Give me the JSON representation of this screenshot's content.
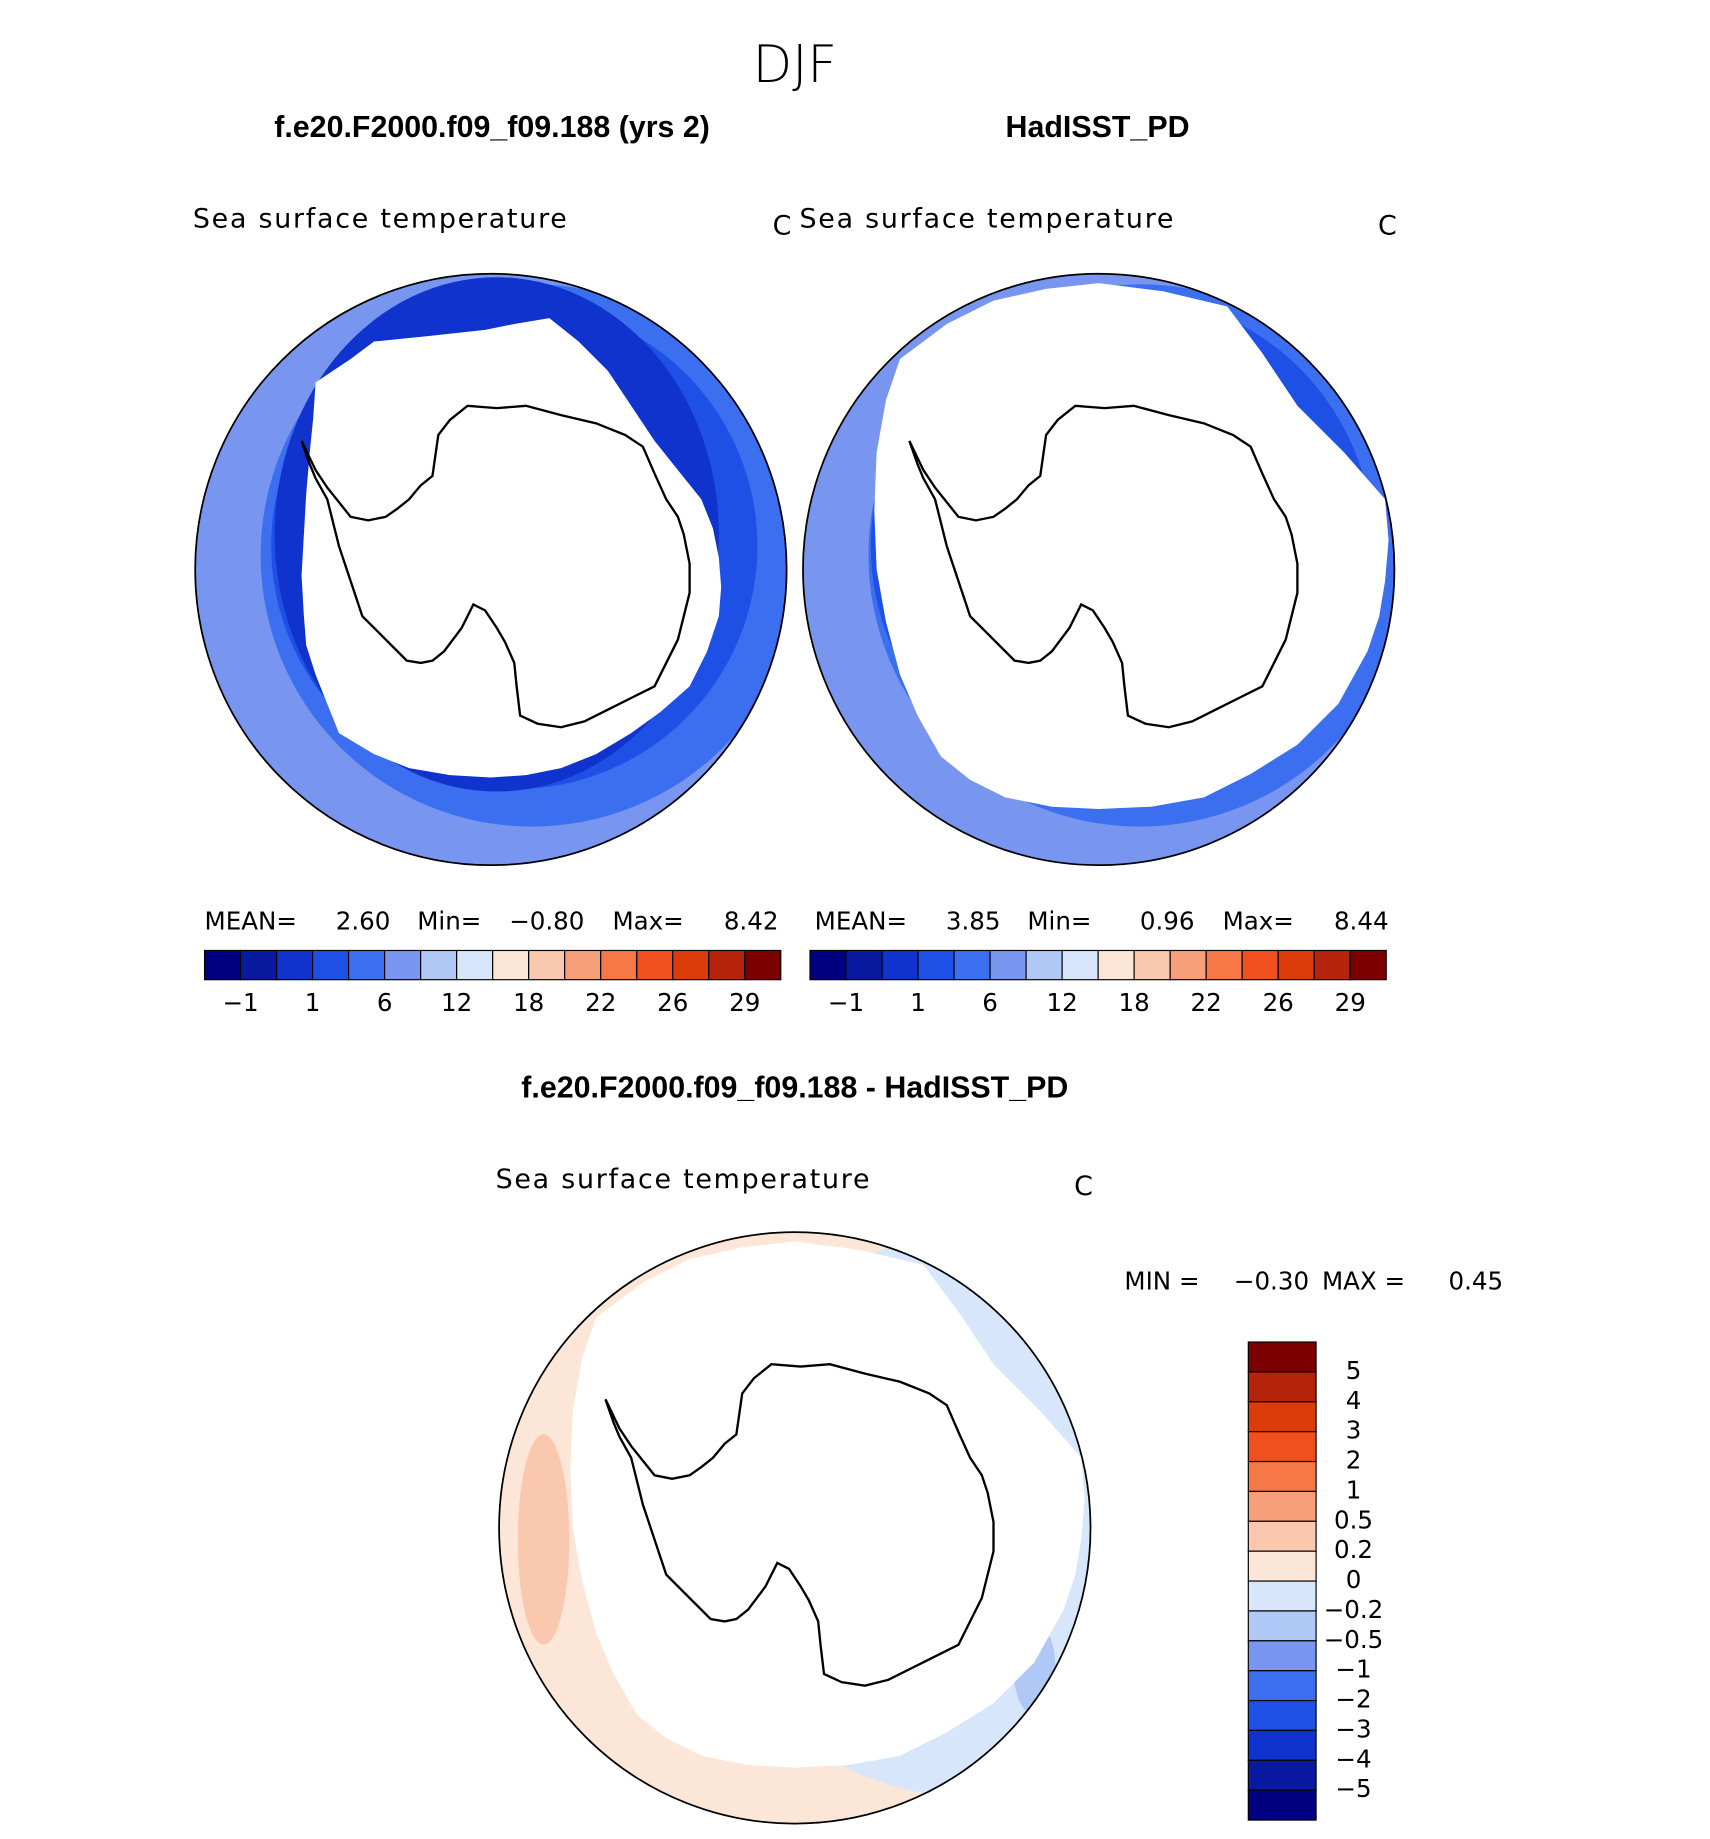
{
  "title": "DJF",
  "panels": [
    {
      "title": "f.e20.F2000.f09_f09.188 (yrs 2)",
      "subtitle": "Sea surface temperature",
      "units": "C",
      "stats": [
        {
          "label": "MEAN=",
          "value": "2.60"
        },
        {
          "label": "Min=",
          "value": "−0.80"
        },
        {
          "label": "Max=",
          "value": "8.42"
        }
      ]
    },
    {
      "title": "HadISST_PD",
      "subtitle": "Sea surface temperature",
      "units": "C",
      "stats": [
        {
          "label": "MEAN=",
          "value": "3.85"
        },
        {
          "label": "Min=",
          "value": "0.96"
        },
        {
          "label": "Max=",
          "value": "8.44"
        }
      ]
    }
  ],
  "colorbar": {
    "colors": [
      "#000080",
      "#0a1aa0",
      "#0f33cc",
      "#1e50e6",
      "#3c6ef0",
      "#7896f0",
      "#afc8f5",
      "#d7e6fa",
      "#fce6d7",
      "#fac8af",
      "#f5a078",
      "#f57846",
      "#f0501e",
      "#dc3c0a",
      "#b4230a",
      "#7d0000"
    ],
    "labels": [
      "−1",
      "1",
      "6",
      "12",
      "18",
      "22",
      "26",
      "29"
    ]
  },
  "difference": {
    "title": "f.e20.F2000.f09_f09.188 - HadISST_PD",
    "subtitle": "Sea surface temperature",
    "units": "C",
    "stats": [
      {
        "label": "MIN =",
        "value": "−0.30"
      },
      {
        "label": "MAX =",
        "value": "0.45"
      }
    ],
    "colorbar": {
      "colors": [
        "#7d0000",
        "#b4230a",
        "#dc3c0a",
        "#f0501e",
        "#f57846",
        "#f5a078",
        "#fac8af",
        "#fce6d7",
        "#d7e6fa",
        "#afc8f5",
        "#7896f0",
        "#3c6ef0",
        "#1e50e6",
        "#0f33cc",
        "#0a1aa0",
        "#000080"
      ],
      "labels": [
        "5",
        "4",
        "3",
        "2",
        "1",
        "0.5",
        "0.2",
        "0",
        "−0.2",
        "−0.5",
        "−1",
        "−2",
        "−3",
        "−4",
        "−5"
      ]
    }
  }
}
